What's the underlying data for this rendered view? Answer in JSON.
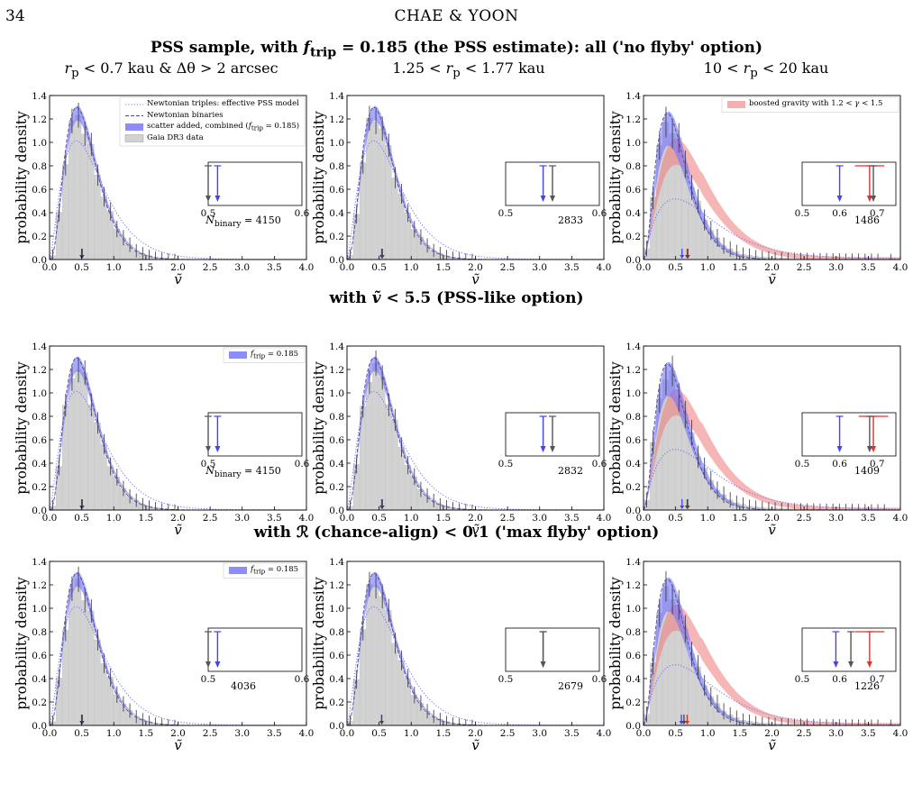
{
  "page_number": "34",
  "running_header": "CHAE & YOON",
  "row_titles": [
    "PSS sample, with f_trip = 0.185 (the PSS estimate): all ('no flyby' option)",
    "with ṽ < 5.5 (PSS-like option)",
    "with ℛ (chance-align) < 0.1 ('max flyby' option)"
  ],
  "column_titles": [
    "r_p < 0.7 kau & Δθ > 2 arcsec",
    "1.25 < r_p < 1.77 kau",
    "10 < r_p < 20 kau"
  ],
  "legend": {
    "triples": "Newtonian triples: effective PSS model",
    "binaries": "Newtonian binaries",
    "combined": "scatter added, combined (f_trip = 0.185)",
    "gaia": "Gaia DR3 data",
    "ftrip": "f_trip = 0.185",
    "boosted": "boosted gravity with 1.2 < γ < 1.5"
  },
  "colors": {
    "newtonian": "#6f6fff",
    "boosted": "#f07a7a",
    "data": "#555555",
    "hist": "#d2d2d2"
  },
  "chart_data": {
    "type": "bar",
    "layout": "3x3 grid of histogram panels",
    "xlabel": "ṽ",
    "ylabel": "probability density",
    "xlim": [
      0.0,
      4.0
    ],
    "ylim": [
      0.0,
      1.4
    ],
    "xticks": [
      "0.0",
      "0.5",
      "1.0",
      "1.5",
      "2.0",
      "2.5",
      "3.0",
      "3.5",
      "4.0"
    ],
    "yticks": [
      "0.0",
      "0.2",
      "0.4",
      "0.6",
      "0.8",
      "1.0",
      "1.2",
      "1.4"
    ],
    "panels": [
      {
        "row": 0,
        "col": 0,
        "count_label": "N_binary = 4150",
        "median_data": 0.5,
        "median_newton": 0.51,
        "inset_xlim": [
          0.5,
          0.6
        ],
        "inset_ticks": [
          "0.5",
          "0.6"
        ],
        "shape": "narrow",
        "boosted": false
      },
      {
        "row": 0,
        "col": 1,
        "count_label": "2833",
        "median_data": 0.55,
        "median_newton": 0.54,
        "inset_xlim": [
          0.5,
          0.6
        ],
        "inset_ticks": [
          "0.5",
          "0.6"
        ],
        "shape": "narrow",
        "boosted": false
      },
      {
        "row": 0,
        "col": 2,
        "count_label": "1486",
        "median_data": 0.69,
        "median_newton": 0.6,
        "median_boost": 0.68,
        "inset_xlim": [
          0.5,
          0.75
        ],
        "inset_ticks": [
          "0.5",
          "0.6",
          "0.7"
        ],
        "shape": "wide",
        "boosted": true
      },
      {
        "row": 1,
        "col": 0,
        "count_label": "N_binary = 4150",
        "median_data": 0.5,
        "median_newton": 0.51,
        "inset_xlim": [
          0.5,
          0.6
        ],
        "inset_ticks": [
          "0.5",
          "0.6"
        ],
        "shape": "narrow",
        "boosted": false
      },
      {
        "row": 1,
        "col": 1,
        "count_label": "2832",
        "median_data": 0.55,
        "median_newton": 0.54,
        "inset_xlim": [
          0.5,
          0.6
        ],
        "inset_ticks": [
          "0.5",
          "0.6"
        ],
        "shape": "narrow",
        "boosted": false
      },
      {
        "row": 1,
        "col": 2,
        "count_label": "1409",
        "median_data": 0.68,
        "median_newton": 0.6,
        "median_boost": 0.69,
        "inset_xlim": [
          0.5,
          0.75
        ],
        "inset_ticks": [
          "0.5",
          "0.6",
          "0.7"
        ],
        "shape": "wide",
        "boosted": true
      },
      {
        "row": 2,
        "col": 0,
        "count_label": "4036",
        "median_data": 0.5,
        "median_newton": 0.51,
        "inset_xlim": [
          0.5,
          0.6
        ],
        "inset_ticks": [
          "0.5",
          "0.6"
        ],
        "shape": "narrow",
        "boosted": false
      },
      {
        "row": 2,
        "col": 1,
        "count_label": "2679",
        "median_data": 0.54,
        "median_newton": 0.54,
        "inset_xlim": [
          0.5,
          0.6
        ],
        "inset_ticks": [
          "0.5",
          "0.6"
        ],
        "shape": "narrow",
        "boosted": false
      },
      {
        "row": 2,
        "col": 2,
        "count_label": "1226",
        "median_data": 0.63,
        "median_newton": 0.59,
        "median_boost": 0.68,
        "inset_xlim": [
          0.5,
          0.75
        ],
        "inset_ticks": [
          "0.5",
          "0.6",
          "0.7"
        ],
        "shape": "wide",
        "boosted": true
      }
    ]
  }
}
